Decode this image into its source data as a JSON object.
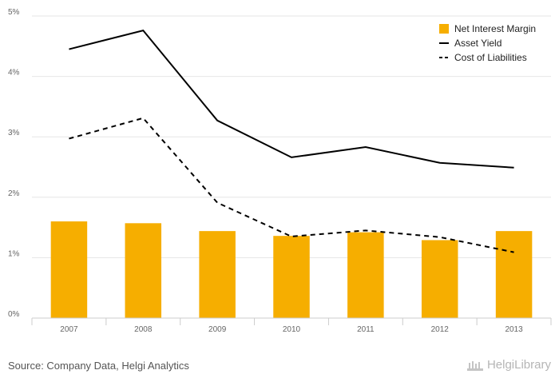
{
  "chart_data": {
    "type": "bar",
    "categories": [
      "2007",
      "2008",
      "2009",
      "2010",
      "2011",
      "2012",
      "2013"
    ],
    "series": [
      {
        "name": "Net Interest Margin",
        "kind": "bar",
        "color": "#f6ae00",
        "values": [
          1.6,
          1.57,
          1.44,
          1.36,
          1.42,
          1.29,
          1.44
        ]
      },
      {
        "name": "Asset Yield",
        "kind": "line",
        "style": "solid",
        "color": "#000000",
        "values": [
          4.45,
          4.76,
          3.27,
          2.66,
          2.83,
          2.57,
          2.49
        ]
      },
      {
        "name": "Cost of Liabilities",
        "kind": "line",
        "style": "dashed",
        "color": "#000000",
        "values": [
          2.97,
          3.31,
          1.91,
          1.35,
          1.45,
          1.34,
          1.09
        ]
      }
    ],
    "ylim": [
      0,
      5
    ],
    "yticks": [
      "0%",
      "1%",
      "2%",
      "3%",
      "4%",
      "5%"
    ],
    "grid": true,
    "legend_position": "top-right"
  },
  "footer": {
    "source": "Source: Company Data, Helgi Analytics",
    "brand": "HelgiLibrary"
  }
}
